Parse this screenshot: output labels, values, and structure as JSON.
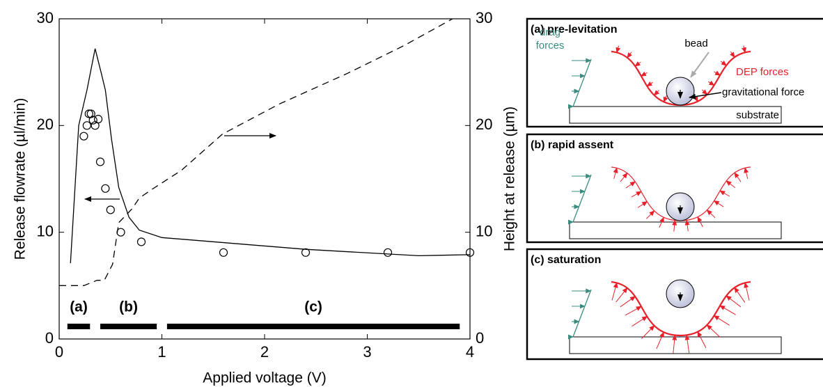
{
  "chart_data": {
    "type": "line",
    "xlabel": "Applied voltage (V)",
    "ylabel": "Release flowrate (µl/min)",
    "y2label": "Height at release (µm)",
    "xlim": [
      0,
      4
    ],
    "xticks": [
      0,
      1,
      2,
      3,
      4
    ],
    "ylim": [
      0,
      30
    ],
    "yticks": [
      0,
      10,
      20,
      30
    ],
    "y2lim": [
      0,
      30
    ],
    "y2ticks": [
      0,
      10,
      20,
      30
    ],
    "series": [
      {
        "style": "circle",
        "color": "#000000",
        "x": [
          0.24,
          0.27,
          0.29,
          0.31,
          0.33,
          0.35,
          0.38,
          0.4,
          0.45,
          0.5,
          0.6,
          0.8,
          1.6,
          2.4,
          3.2,
          4.0
        ],
        "values": [
          19.0,
          20.0,
          21.1,
          21.1,
          20.5,
          20.0,
          20.6,
          16.6,
          14.1,
          12.1,
          10.0,
          9.1,
          8.1,
          8.1,
          8.1,
          8.1
        ]
      },
      {
        "style": "solid",
        "color": "#000000",
        "x": [
          0.11,
          0.19,
          0.27,
          0.35,
          0.41,
          0.45,
          0.51,
          0.58,
          0.68,
          0.78,
          1.0,
          2.4,
          3.5,
          4.0
        ],
        "values": [
          7.1,
          20.0,
          23.3,
          27.2,
          24.9,
          23.3,
          18.7,
          14.2,
          11.4,
          10.2,
          9.5,
          8.4,
          7.8,
          7.9
        ]
      },
      {
        "style": "dashed",
        "color": "#000000",
        "axis": "y2",
        "x": [
          0,
          0.24,
          0.37,
          0.44,
          0.52,
          0.58,
          0.71,
          0.78,
          0.9,
          1.19,
          1.59,
          2.14,
          2.81,
          3.36,
          3.83
        ],
        "values": [
          5.0,
          5.0,
          5.5,
          5.5,
          7.0,
          10.9,
          12.2,
          13.2,
          14.0,
          15.8,
          19.2,
          22.0,
          24.9,
          27.5,
          30.0
        ]
      }
    ],
    "regimes": [
      {
        "text": "(a)",
        "xrange": [
          0.08,
          0.3
        ]
      },
      {
        "text": "(b)",
        "xrange": [
          0.4,
          0.95
        ]
      },
      {
        "text": "(c)",
        "xrange": [
          1.05,
          3.9
        ]
      }
    ]
  },
  "diagram": {
    "panels": [
      {
        "title": "(a) pre-levitation",
        "drag_label": [
          "drag",
          "forces"
        ],
        "bead_label": "bead",
        "dep_label": "DEP forces",
        "gravity_label": "gravitational force",
        "substrate_label": "substrate"
      },
      {
        "title": "(b) rapid assent"
      },
      {
        "title": "(c) saturation"
      }
    ]
  }
}
